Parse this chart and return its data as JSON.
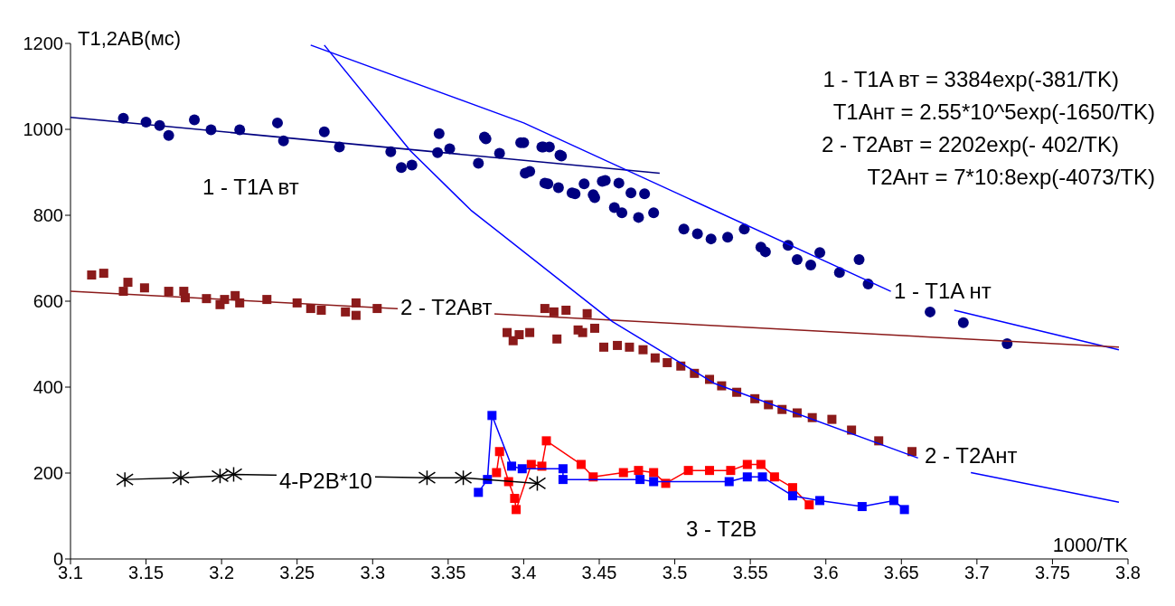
{
  "chart_data": {
    "type": "scatter",
    "ylabel": "T1,2AB(мс)",
    "xlabel": "1000/TK",
    "xlim": [
      3.1,
      3.8
    ],
    "xticks": [
      3.1,
      3.15,
      3.2,
      3.25,
      3.3,
      3.35,
      3.4,
      3.45,
      3.5,
      3.55,
      3.6,
      3.65,
      3.7,
      3.75,
      3.8
    ],
    "ylim": [
      0,
      1200
    ],
    "yticks": [
      0,
      200,
      400,
      600,
      800,
      1000,
      1200
    ],
    "grid": false,
    "series": [
      {
        "marker": "circle",
        "color": "#000080",
        "x": [
          3.135,
          3.15,
          3.159,
          3.165,
          3.182,
          3.193,
          3.212,
          3.237,
          3.241,
          3.268,
          3.278,
          3.312,
          3.319,
          3.326,
          3.344,
          3.343,
          3.351,
          3.37,
          3.375,
          3.384,
          3.4,
          3.404,
          3.413,
          3.417,
          3.416,
          3.425,
          3.423,
          3.434,
          3.44,
          3.447,
          3.454,
          3.374,
          3.398,
          3.412,
          3.424,
          3.401,
          3.414,
          3.432,
          3.446,
          3.452,
          3.463,
          3.471,
          3.48,
          3.46,
          3.465,
          3.476,
          3.486,
          3.506,
          3.515,
          3.524,
          3.535,
          3.546,
          3.557,
          3.56,
          3.575,
          3.581,
          3.59,
          3.596,
          3.609,
          3.622,
          3.628,
          3.669,
          3.691,
          3.72
        ],
        "values": [
          1026,
          1017,
          1009,
          986,
          1022,
          999,
          999,
          1015,
          973,
          994,
          959,
          948,
          911,
          917,
          990,
          946,
          955,
          921,
          978,
          944,
          969,
          902,
          959,
          959,
          873,
          938,
          864,
          850,
          873,
          841,
          881,
          982,
          969,
          959,
          940,
          898,
          875,
          852,
          848,
          879,
          875,
          852,
          850,
          818,
          806,
          795,
          806,
          768,
          757,
          745,
          749,
          768,
          726,
          715,
          730,
          697,
          684,
          713,
          667,
          697,
          640,
          575,
          550,
          501
        ]
      },
      {
        "marker": "square",
        "color": "#8b1a1a",
        "x": [
          3.114,
          3.122,
          3.135,
          3.138,
          3.149,
          3.165,
          3.175,
          3.176,
          3.19,
          3.199,
          3.202,
          3.209,
          3.212,
          3.23,
          3.25,
          3.259,
          3.266,
          3.282,
          3.289,
          3.289,
          3.303,
          3.389,
          3.393,
          3.397,
          3.404,
          3.414,
          3.42,
          3.428,
          3.439,
          3.422,
          3.436,
          3.442,
          3.447,
          3.453,
          3.462,
          3.47,
          3.479,
          3.487,
          3.495,
          3.504,
          3.513,
          3.523,
          3.531,
          3.541,
          3.553,
          3.562,
          3.571,
          3.581,
          3.591,
          3.604,
          3.617,
          3.635,
          3.657
        ],
        "values": [
          661,
          665,
          623,
          644,
          631,
          623,
          623,
          608,
          606,
          592,
          604,
          613,
          596,
          604,
          596,
          583,
          579,
          575,
          596,
          567,
          583,
          527,
          508,
          522,
          527,
          583,
          575,
          579,
          527,
          512,
          533,
          571,
          537,
          493,
          497,
          493,
          487,
          468,
          457,
          449,
          432,
          418,
          403,
          388,
          373,
          359,
          348,
          340,
          329,
          325,
          300,
          275,
          250
        ]
      },
      {
        "type": "line",
        "marker": "square",
        "color": "#ff0000",
        "x": [
          3.382,
          3.384,
          3.39,
          3.394,
          3.395,
          3.405,
          3.412,
          3.415,
          3.438,
          3.446,
          3.466,
          3.476,
          3.486,
          3.494,
          3.509,
          3.523,
          3.537,
          3.548,
          3.557,
          3.566,
          3.578,
          3.589
        ],
        "values": [
          201,
          250,
          180,
          141,
          115,
          220,
          216,
          275,
          220,
          191,
          201,
          206,
          201,
          176,
          206,
          206,
          206,
          220,
          220,
          191,
          166,
          126
        ]
      },
      {
        "type": "line",
        "marker": "square",
        "color": "#0000ff",
        "x": [
          3.37,
          3.376,
          3.379,
          3.392,
          3.399,
          3.426,
          3.426,
          3.477,
          3.486,
          3.536,
          3.548,
          3.558,
          3.578,
          3.596,
          3.624,
          3.645,
          3.652
        ],
        "values": [
          155,
          185,
          334,
          216,
          210,
          210,
          185,
          185,
          180,
          180,
          191,
          191,
          147,
          136,
          122,
          136,
          115
        ]
      },
      {
        "type": "line",
        "marker": "cross",
        "color": "#000000",
        "x": [
          3.136,
          3.173,
          3.199,
          3.208,
          3.336,
          3.36,
          3.409
        ],
        "values": [
          185,
          189,
          193,
          197,
          189,
          189,
          176
        ]
      },
      {
        "type": "line",
        "marker": "none",
        "color": "#000080",
        "x": [
          3.1,
          3.49
        ],
        "values": [
          1028,
          898
        ]
      },
      {
        "type": "line",
        "marker": "none",
        "color": "#0000ff",
        "x": [
          3.259,
          3.4,
          3.643
        ],
        "values": [
          1196,
          1015,
          623
        ]
      },
      {
        "type": "line",
        "marker": "none",
        "color": "#0000ff",
        "x": [
          3.685,
          3.794
        ],
        "values": [
          579,
          487
        ]
      },
      {
        "type": "line",
        "marker": "none",
        "color": "#8b1a1a",
        "x": [
          3.1,
          3.794
        ],
        "values": [
          623,
          493
        ]
      },
      {
        "type": "line",
        "marker": "none",
        "color": "#0000ff",
        "x": [
          3.268,
          3.325,
          3.365,
          3.459,
          3.526,
          3.661
        ],
        "values": [
          1196,
          950,
          812,
          552,
          409,
          235
        ]
      },
      {
        "type": "line",
        "marker": "none",
        "color": "#0000ff",
        "x": [
          3.696,
          3.794
        ],
        "values": [
          201,
          132
        ]
      }
    ],
    "annotations": [
      "1 - T1A вт = 3384exp(-381/TK)",
      "T1Aнт = 2.55*10^5exp(-1650/TK)",
      "2 - T2Aвт = 2202exp(- 402/TK)",
      "T2Aнт = 7*10:8exp(-4073/TK)",
      "1 - T1A вт",
      "2 - T2Aвт",
      "1 - T1A нт",
      "2 - T2Aнт",
      "3 - T2B",
      "4-P2B*10"
    ]
  }
}
